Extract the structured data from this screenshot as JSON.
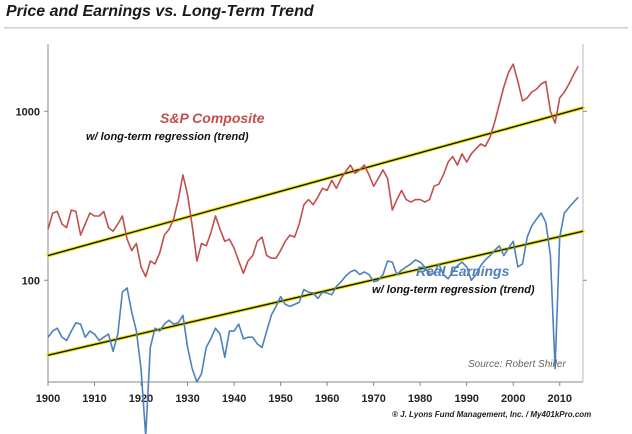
{
  "colors": {
    "price": "#c0504d",
    "earnings": "#4f81bd",
    "trend": "#101010",
    "trend_glow": "#e8e000"
  },
  "chart_data": {
    "type": "line",
    "title": "Price and Earnings vs. Long-Term Trend",
    "y_scale": "log",
    "xlim": [
      1900,
      2015
    ],
    "ylim": [
      25,
      2500
    ],
    "x_ticks": [
      1900,
      1910,
      1920,
      1930,
      1940,
      1950,
      1960,
      1970,
      1980,
      1990,
      2000,
      2010
    ],
    "y_ticks": [
      100,
      1000
    ],
    "series": [
      {
        "name": "S&P Composite",
        "sub": "w/ long-term regression (trend)",
        "color": "#c0504d",
        "x": [
          1900,
          1901,
          1902,
          1903,
          1904,
          1905,
          1906,
          1907,
          1908,
          1909,
          1910,
          1911,
          1912,
          1913,
          1914,
          1915,
          1916,
          1917,
          1918,
          1919,
          1920,
          1921,
          1922,
          1923,
          1924,
          1925,
          1926,
          1927,
          1928,
          1929,
          1930,
          1931,
          1932,
          1933,
          1934,
          1935,
          1936,
          1937,
          1938,
          1939,
          1940,
          1941,
          1942,
          1943,
          1944,
          1945,
          1946,
          1947,
          1948,
          1949,
          1950,
          1951,
          1952,
          1953,
          1954,
          1955,
          1956,
          1957,
          1958,
          1959,
          1960,
          1961,
          1962,
          1963,
          1964,
          1965,
          1966,
          1967,
          1968,
          1969,
          1970,
          1971,
          1972,
          1973,
          1974,
          1975,
          1976,
          1977,
          1978,
          1979,
          1980,
          1981,
          1982,
          1983,
          1984,
          1985,
          1986,
          1987,
          1988,
          1989,
          1990,
          1991,
          1992,
          1993,
          1994,
          1995,
          1996,
          1997,
          1998,
          1999,
          2000,
          2001,
          2002,
          2003,
          2004,
          2005,
          2006,
          2007,
          2008,
          2009,
          2010,
          2011,
          2012,
          2013,
          2014
        ],
        "values": [
          200,
          250,
          255,
          215,
          205,
          260,
          255,
          185,
          215,
          250,
          240,
          240,
          255,
          205,
          195,
          215,
          240,
          175,
          150,
          165,
          120,
          105,
          130,
          125,
          145,
          185,
          200,
          230,
          300,
          420,
          320,
          210,
          130,
          165,
          160,
          190,
          240,
          200,
          170,
          175,
          155,
          130,
          110,
          130,
          140,
          170,
          180,
          140,
          135,
          135,
          150,
          170,
          185,
          180,
          215,
          280,
          300,
          280,
          310,
          350,
          340,
          390,
          350,
          400,
          440,
          480,
          430,
          450,
          480,
          420,
          360,
          400,
          450,
          400,
          260,
          300,
          340,
          300,
          290,
          300,
          300,
          290,
          300,
          360,
          370,
          420,
          500,
          540,
          480,
          560,
          500,
          560,
          600,
          640,
          620,
          700,
          860,
          1100,
          1400,
          1700,
          1900,
          1500,
          1150,
          1200,
          1300,
          1350,
          1450,
          1500,
          1000,
          850,
          1200,
          1300,
          1450,
          1650,
          1850
        ]
      },
      {
        "name": "Real Earnings",
        "sub": "w/ long-term regression (trend)",
        "color": "#4f81bd",
        "x": [
          1900,
          1901,
          1902,
          1903,
          1904,
          1905,
          1906,
          1907,
          1908,
          1909,
          1910,
          1911,
          1912,
          1913,
          1914,
          1915,
          1916,
          1917,
          1918,
          1919,
          1920,
          1921,
          1922,
          1923,
          1924,
          1925,
          1926,
          1927,
          1928,
          1929,
          1930,
          1931,
          1932,
          1933,
          1934,
          1935,
          1936,
          1937,
          1938,
          1939,
          1940,
          1941,
          1942,
          1943,
          1944,
          1945,
          1946,
          1947,
          1948,
          1949,
          1950,
          1951,
          1952,
          1953,
          1954,
          1955,
          1956,
          1957,
          1958,
          1959,
          1960,
          1961,
          1962,
          1963,
          1964,
          1965,
          1966,
          1967,
          1968,
          1969,
          1970,
          1971,
          1972,
          1973,
          1974,
          1975,
          1976,
          1977,
          1978,
          1979,
          1980,
          1981,
          1982,
          1983,
          1984,
          1985,
          1986,
          1987,
          1988,
          1989,
          1990,
          1991,
          1992,
          1993,
          1994,
          1995,
          1996,
          1997,
          1998,
          1999,
          2000,
          2001,
          2002,
          2003,
          2004,
          2005,
          2006,
          2007,
          2008,
          2009,
          2010,
          2011,
          2012,
          2013,
          2014
        ],
        "values": [
          46,
          50,
          52,
          46,
          44,
          50,
          56,
          55,
          46,
          50,
          48,
          44,
          46,
          48,
          38,
          48,
          85,
          90,
          65,
          50,
          30,
          12,
          40,
          52,
          50,
          55,
          58,
          55,
          56,
          62,
          40,
          30,
          25,
          28,
          40,
          45,
          52,
          48,
          35,
          50,
          50,
          55,
          45,
          46,
          46,
          42,
          40,
          50,
          62,
          70,
          80,
          72,
          70,
          72,
          74,
          88,
          85,
          84,
          78,
          85,
          84,
          82,
          92,
          98,
          106,
          112,
          115,
          108,
          112,
          108,
          98,
          100,
          108,
          130,
          128,
          108,
          115,
          120,
          125,
          132,
          128,
          120,
          108,
          110,
          125,
          108,
          102,
          112,
          122,
          128,
          120,
          100,
          108,
          122,
          132,
          140,
          150,
          160,
          140,
          155,
          170,
          120,
          125,
          180,
          210,
          230,
          250,
          220,
          140,
          30,
          180,
          250,
          270,
          290,
          310
        ]
      },
      {
        "name": "price_trend",
        "x": [
          1900,
          2015
        ],
        "values": [
          140,
          1050
        ]
      },
      {
        "name": "earnings_trend",
        "x": [
          1900,
          2015
        ],
        "values": [
          36,
          195
        ]
      }
    ]
  },
  "annotations": {
    "price_label": "S&P Composite",
    "price_sub": "w/ long-term regression (trend)",
    "earnings_label": "Real Earnings",
    "earnings_sub": "w/ long-term regression (trend)",
    "source": "Source: Robert Shiller",
    "credit": "® J. Lyons Fund Management, Inc. / My401kPro.com"
  }
}
